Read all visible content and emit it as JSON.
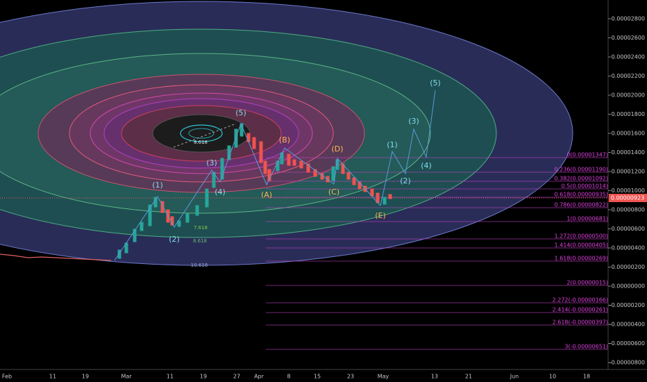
{
  "price_axis": [
    "0.00002800",
    "0.00002600",
    "0.00002400",
    "0.00002200",
    "0.00002000",
    "0.00001800",
    "0.00001600",
    "0.00001400",
    "0.00001200",
    "0.00001000",
    "0.00000800",
    "0.00000600",
    "0.00000400",
    "0.00000200",
    "0.00000000",
    "-0.00000200",
    "-0.00000400",
    "-0.00000600",
    "-0.00000800"
  ],
  "current_price": "0.00000923",
  "date_axis": [
    "Feb",
    "11",
    "19",
    "Mar",
    "11",
    "19",
    "27",
    "Apr",
    "8",
    "15",
    "23",
    "May",
    "13",
    "21",
    "Jun",
    "10",
    "18"
  ],
  "fib_levels": [
    "0(0.00001347)",
    "0.236(0.00001190)",
    "0.382(0.00001092)",
    "0.5(0.00001014)",
    "0.618(0.00000935)",
    "0.786(0.00000822)",
    "1(0.00000681)",
    "1.272(0.00000500)",
    "1.414(0.00000405)",
    "1.618(0.00000269)",
    "2(0.00000015)",
    "2.272(-0.00000166)",
    "2.414(-0.00000261)",
    "2.618(-0.00000397)",
    "3(-0.00000651)"
  ],
  "wave_labels": [
    "(1)",
    "(2)",
    "(3)",
    "(4)",
    "(5)",
    "(A)",
    "(B)",
    "(C)",
    "(D)",
    "(E)",
    "(1)",
    "(2)",
    "(3)",
    "(4)",
    "(5)"
  ],
  "circle_labels": [
    "8.618",
    "7.618",
    "8.618",
    "10.618"
  ]
}
